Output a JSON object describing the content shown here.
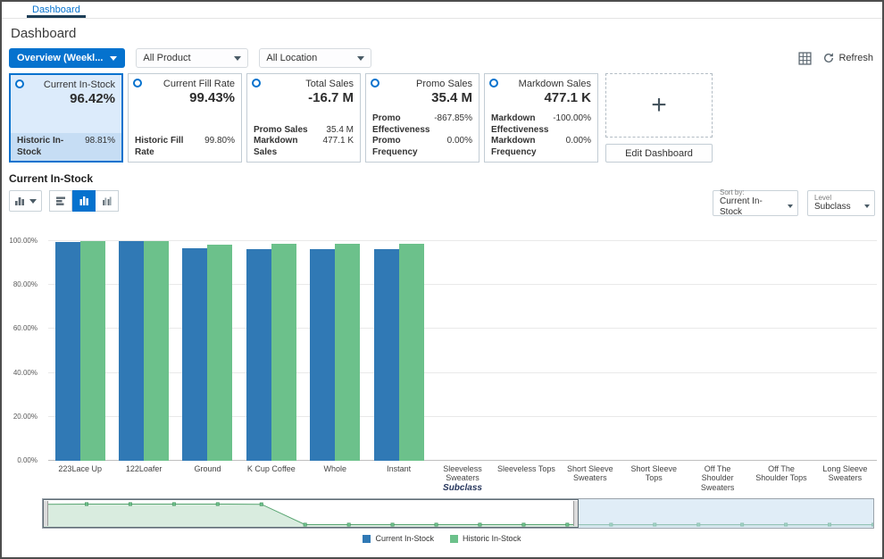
{
  "window": {
    "tab_label": "Dashboard",
    "page_title": "Dashboard"
  },
  "filters": {
    "view_selector": "Overview (Weekl...",
    "product": "All Product",
    "location": "All Location",
    "refresh_label": "Refresh"
  },
  "tiles": [
    {
      "title": "Current In-Stock",
      "value": "96.42%",
      "selected": true,
      "rows": [
        {
          "label": "Historic In-Stock",
          "value": "98.81%"
        }
      ]
    },
    {
      "title": "Current Fill Rate",
      "value": "99.43%",
      "selected": false,
      "rows": [
        {
          "label": "Historic Fill Rate",
          "value": "99.80%"
        }
      ]
    },
    {
      "title": "Total Sales",
      "value": "-16.7 M",
      "selected": false,
      "rows": [
        {
          "label": "Promo Sales",
          "value": "35.4 M"
        },
        {
          "label": "Markdown Sales",
          "value": "477.1 K"
        }
      ]
    },
    {
      "title": "Promo Sales",
      "value": "35.4 M",
      "selected": false,
      "rows": [
        {
          "label": "Promo Effectiveness",
          "value": "-867.85%"
        },
        {
          "label": "Promo Frequency",
          "value": "0.00%"
        }
      ]
    },
    {
      "title": "Markdown Sales",
      "value": "477.1 K",
      "selected": false,
      "rows": [
        {
          "label": "Markdown Effectiveness",
          "value": "-100.00%"
        },
        {
          "label": "Markdown Frequency",
          "value": "0.00%"
        }
      ]
    }
  ],
  "edit": {
    "plus": "+",
    "button": "Edit Dashboard"
  },
  "section": {
    "title": "Current In-Stock"
  },
  "toolbar": {
    "sort_by_label": "Sort by:",
    "sort_by_value": "Current In-Stock",
    "level_label": "Level",
    "level_value": "Subclass"
  },
  "chart_data": {
    "type": "bar",
    "title": "Current In-Stock",
    "xlabel": "Subclass",
    "ylabel": "",
    "ylim": [
      0,
      100
    ],
    "y_ticks": [
      0,
      20,
      40,
      60,
      80,
      100
    ],
    "y_tick_labels": [
      "0.00%",
      "20.00%",
      "40.00%",
      "60.00%",
      "80.00%",
      "100.00%"
    ],
    "categories": [
      "223Lace Up",
      "122Loafer",
      "Ground",
      "K Cup Coffee",
      "Whole",
      "Instant",
      "Sleeveless Sweaters",
      "Sleeveless Tops",
      "Short Sleeve Sweaters",
      "Short Sleeve Tops",
      "Off The Shoulder Sweaters",
      "Off The Shoulder Tops",
      "Long Sleeve Sweaters"
    ],
    "series": [
      {
        "name": "Current In-Stock",
        "color": "#3079b5",
        "values": [
          99.7,
          100,
          96.6,
          96.5,
          96.3,
          96.4,
          0,
          0,
          0,
          0,
          0,
          0,
          0
        ]
      },
      {
        "name": "Historic In-Stock",
        "color": "#6cc18b",
        "values": [
          99.9,
          100,
          98.3,
          98.7,
          98.6,
          98.6,
          0,
          0,
          0,
          0,
          0,
          0,
          0
        ]
      }
    ],
    "legend_position": "bottom",
    "grid": true,
    "overview": {
      "selection_start_pct": 0,
      "selection_end_pct": 64.5,
      "values": [
        97,
        98,
        98,
        98,
        98,
        97,
        2,
        2,
        2,
        2,
        2,
        2,
        2,
        2,
        2,
        2,
        2,
        2,
        2,
        2
      ]
    }
  },
  "colors": {
    "accent": "#0572ce",
    "bar_blue": "#3079b5",
    "bar_green": "#6cc18b",
    "selected_tile_bg": "#dcebfb",
    "tab_underline": "#1c3e57"
  }
}
